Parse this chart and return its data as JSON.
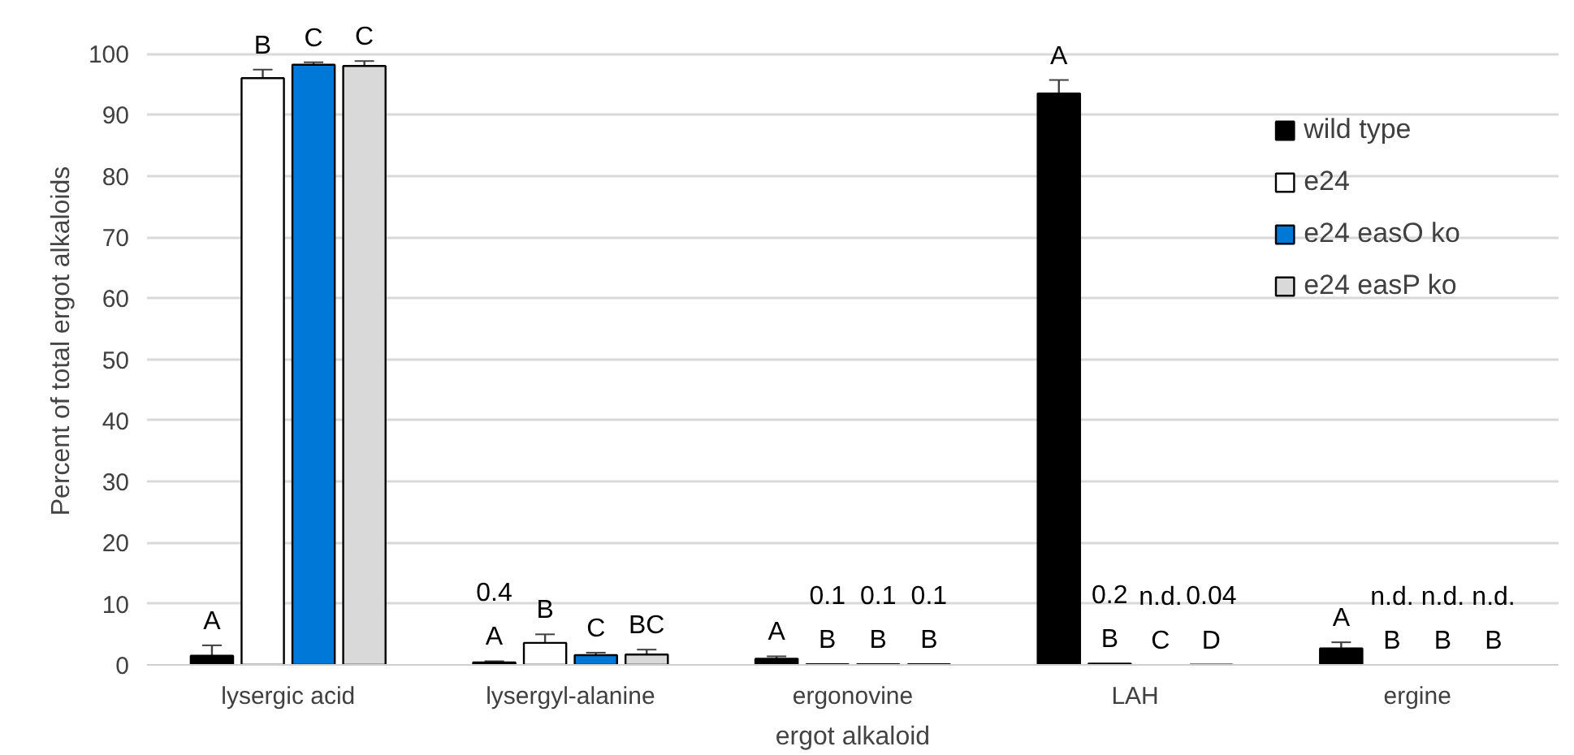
{
  "chart_data": {
    "type": "bar",
    "xlabel": "ergot alkaloid",
    "ylabel": "Percent of total ergot alkaloids",
    "categories": [
      "lysergic acid",
      "lysergyl-alanine",
      "ergonovine",
      "LAH",
      "ergine"
    ],
    "series": [
      {
        "name": "wild type",
        "color": "#000000",
        "values": [
          1.5,
          0.4,
          1.0,
          93.5,
          2.7
        ],
        "errors": [
          [
            1.5,
            3.2
          ],
          [
            0.4,
            0.6
          ],
          [
            1.0,
            1.4
          ],
          [
            93.5,
            95.7
          ],
          [
            2.7,
            3.7
          ]
        ],
        "value_labels": [
          "A",
          "0.4\nA",
          "A",
          "A",
          "A"
        ]
      },
      {
        "name": "e24",
        "color": "#ffffff",
        "values": [
          96.0,
          3.6,
          0.1,
          0.2,
          null
        ],
        "errors": [
          [
            96.0,
            97.4
          ],
          [
            3.6,
            5.0
          ],
          null,
          null,
          null
        ],
        "value_labels": [
          "B",
          "B",
          "0.1\nB",
          "0.2\nB",
          "n.d.\nB"
        ]
      },
      {
        "name": "e24 easO ko",
        "color": "#0078d7",
        "values": [
          98.2,
          1.6,
          0.1,
          null,
          null
        ],
        "errors": [
          [
            98.2,
            98.6
          ],
          [
            1.6,
            2.0
          ],
          null,
          null,
          null
        ],
        "value_labels": [
          "C",
          "C",
          "0.1\nB",
          "n.d.\nC",
          "n.d.\nB"
        ]
      },
      {
        "name": "e24 easP ko",
        "color": "#d9d9d9",
        "values": [
          98.0,
          1.7,
          0.1,
          0.04,
          null
        ],
        "errors": [
          [
            98.0,
            98.8
          ],
          [
            1.7,
            2.5
          ],
          null,
          null,
          null
        ],
        "value_labels": [
          "C",
          "BC",
          "0.1\nB",
          "0.04\nD",
          "n.d.\nB"
        ]
      }
    ],
    "ylim": [
      0,
      100
    ],
    "yticks": [
      0,
      10,
      20,
      30,
      40,
      50,
      60,
      70,
      80,
      90,
      100
    ],
    "grid": "y",
    "legend": "top right"
  }
}
